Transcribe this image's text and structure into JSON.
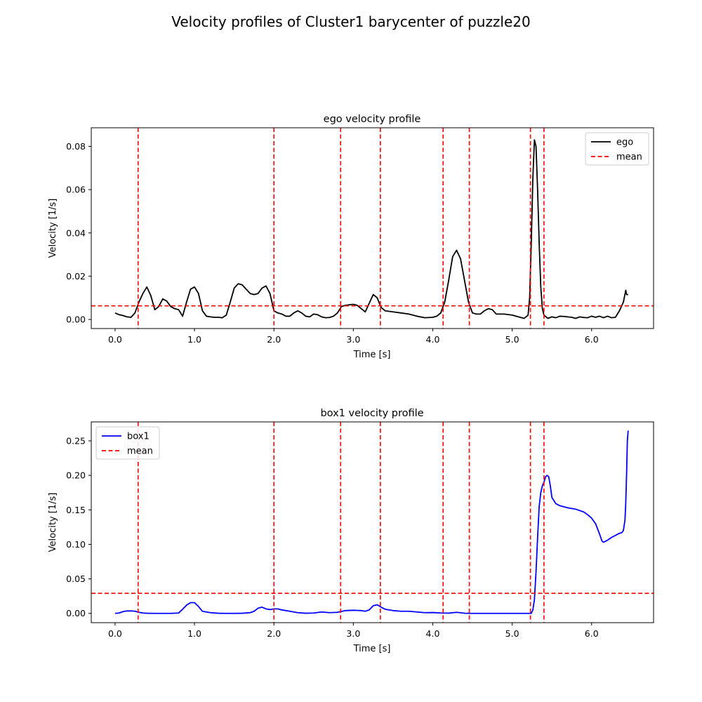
{
  "figure": {
    "title": "Velocity profiles of  Cluster1 barycenter of puzzle20"
  },
  "colors": {
    "ego": "#000000",
    "box1": "#0000ff",
    "mean": "#ff0000"
  },
  "chart_data": [
    {
      "type": "line",
      "title": "ego velocity profile",
      "xlabel": "Time [s]",
      "ylabel": "Velocity [1/s]",
      "xlim": [
        -0.3,
        6.78
      ],
      "ylim": [
        -0.0042,
        0.0886
      ],
      "xticks": [
        0.0,
        1.0,
        2.0,
        3.0,
        4.0,
        5.0,
        6.0
      ],
      "xtick_labels": [
        "0.0",
        "1.0",
        "2.0",
        "3.0",
        "4.0",
        "5.0",
        "6.0"
      ],
      "yticks": [
        0.0,
        0.02,
        0.04,
        0.06,
        0.08
      ],
      "ytick_labels": [
        "0.00",
        "0.02",
        "0.04",
        "0.06",
        "0.08"
      ],
      "legend": {
        "placement": "top-right",
        "entries": [
          "ego",
          "mean"
        ]
      },
      "series": [
        {
          "name": "ego",
          "color": "#000000",
          "style": "solid",
          "x": [
            0.0,
            0.05,
            0.1,
            0.15,
            0.2,
            0.25,
            0.3,
            0.35,
            0.4,
            0.45,
            0.5,
            0.55,
            0.6,
            0.65,
            0.7,
            0.75,
            0.8,
            0.85,
            0.9,
            0.95,
            1.0,
            1.05,
            1.1,
            1.15,
            1.2,
            1.25,
            1.3,
            1.35,
            1.4,
            1.45,
            1.5,
            1.55,
            1.6,
            1.65,
            1.7,
            1.75,
            1.8,
            1.85,
            1.9,
            1.95,
            2.0,
            2.05,
            2.1,
            2.15,
            2.2,
            2.25,
            2.3,
            2.35,
            2.4,
            2.45,
            2.5,
            2.55,
            2.6,
            2.65,
            2.7,
            2.75,
            2.8,
            2.85,
            2.9,
            2.95,
            3.0,
            3.05,
            3.1,
            3.15,
            3.2,
            3.25,
            3.3,
            3.35,
            3.4,
            3.5,
            3.6,
            3.7,
            3.8,
            3.9,
            4.0,
            4.05,
            4.1,
            4.15,
            4.2,
            4.25,
            4.3,
            4.35,
            4.4,
            4.45,
            4.5,
            4.55,
            4.6,
            4.65,
            4.7,
            4.75,
            4.8,
            4.9,
            5.0,
            5.1,
            5.15,
            5.2,
            5.22,
            5.24,
            5.26,
            5.28,
            5.3,
            5.32,
            5.34,
            5.36,
            5.38,
            5.4,
            5.45,
            5.5,
            5.55,
            5.6,
            5.65,
            5.7,
            5.75,
            5.8,
            5.85,
            5.9,
            5.95,
            6.0,
            6.05,
            6.1,
            6.15,
            6.2,
            6.25,
            6.3,
            6.35,
            6.4,
            6.43,
            6.44,
            6.46
          ],
          "y": [
            0.003,
            0.0022,
            0.0018,
            0.0012,
            0.001,
            0.003,
            0.008,
            0.012,
            0.015,
            0.011,
            0.0045,
            0.006,
            0.0095,
            0.0085,
            0.006,
            0.005,
            0.0045,
            0.0015,
            0.008,
            0.014,
            0.015,
            0.012,
            0.004,
            0.0015,
            0.0012,
            0.001,
            0.001,
            0.0008,
            0.002,
            0.008,
            0.0145,
            0.0165,
            0.016,
            0.014,
            0.012,
            0.0115,
            0.012,
            0.0145,
            0.0155,
            0.012,
            0.004,
            0.003,
            0.0025,
            0.0015,
            0.0015,
            0.003,
            0.004,
            0.003,
            0.0015,
            0.0012,
            0.0025,
            0.0022,
            0.0012,
            0.0008,
            0.0009,
            0.0015,
            0.003,
            0.006,
            0.0065,
            0.0068,
            0.007,
            0.0065,
            0.005,
            0.0035,
            0.0075,
            0.0115,
            0.01,
            0.0055,
            0.004,
            0.0035,
            0.003,
            0.0025,
            0.0015,
            0.0008,
            0.001,
            0.0015,
            0.003,
            0.008,
            0.018,
            0.029,
            0.032,
            0.028,
            0.018,
            0.008,
            0.003,
            0.0025,
            0.0025,
            0.004,
            0.005,
            0.0045,
            0.0025,
            0.0025,
            0.002,
            0.001,
            0.0005,
            0.002,
            0.01,
            0.035,
            0.065,
            0.083,
            0.08,
            0.06,
            0.035,
            0.015,
            0.005,
            0.002,
            0.0005,
            0.0012,
            0.0008,
            0.0015,
            0.0014,
            0.0012,
            0.001,
            0.0005,
            0.0012,
            0.0009,
            0.0008,
            0.0015,
            0.001,
            0.0015,
            0.0008,
            0.0015,
            0.0008,
            0.001,
            0.004,
            0.008,
            0.0135,
            0.0115,
            0.0115
          ]
        },
        {
          "name": "mean",
          "color": "#ff0000",
          "style": "dashed",
          "orientation": "horizontal",
          "value": 0.0063
        }
      ],
      "vlines": [
        0.29,
        2.0,
        2.84,
        3.34,
        4.13,
        4.46,
        5.23,
        5.4
      ]
    },
    {
      "type": "line",
      "title": "box1 velocity profile",
      "xlabel": "Time [s]",
      "ylabel": "Velocity [1/s]",
      "xlim": [
        -0.3,
        6.78
      ],
      "ylim": [
        -0.0135,
        0.2775
      ],
      "xticks": [
        0.0,
        1.0,
        2.0,
        3.0,
        4.0,
        5.0,
        6.0
      ],
      "xtick_labels": [
        "0.0",
        "1.0",
        "2.0",
        "3.0",
        "4.0",
        "5.0",
        "6.0"
      ],
      "yticks": [
        0.0,
        0.05,
        0.1,
        0.15,
        0.2,
        0.25
      ],
      "ytick_labels": [
        "0.00",
        "0.05",
        "0.10",
        "0.15",
        "0.20",
        "0.25"
      ],
      "legend": {
        "placement": "top-left",
        "entries": [
          "box1",
          "mean"
        ]
      },
      "series": [
        {
          "name": "box1",
          "color": "#0000ff",
          "style": "solid",
          "x": [
            0.0,
            0.05,
            0.1,
            0.15,
            0.2,
            0.25,
            0.3,
            0.35,
            0.4,
            0.5,
            0.6,
            0.7,
            0.8,
            0.85,
            0.9,
            0.95,
            1.0,
            1.05,
            1.1,
            1.2,
            1.3,
            1.4,
            1.5,
            1.6,
            1.7,
            1.75,
            1.8,
            1.85,
            1.9,
            1.95,
            2.0,
            2.05,
            2.1,
            2.2,
            2.3,
            2.4,
            2.5,
            2.6,
            2.7,
            2.8,
            2.9,
            3.0,
            3.1,
            3.15,
            3.2,
            3.25,
            3.3,
            3.35,
            3.4,
            3.5,
            3.6,
            3.7,
            3.8,
            3.9,
            4.0,
            4.1,
            4.2,
            4.3,
            4.4,
            4.5,
            4.6,
            4.7,
            4.8,
            4.9,
            5.0,
            5.1,
            5.2,
            5.22,
            5.24,
            5.26,
            5.28,
            5.3,
            5.32,
            5.34,
            5.36,
            5.38,
            5.4,
            5.42,
            5.44,
            5.46,
            5.48,
            5.5,
            5.55,
            5.6,
            5.7,
            5.8,
            5.9,
            5.95,
            6.0,
            6.05,
            6.1,
            6.13,
            6.15,
            6.2,
            6.25,
            6.3,
            6.35,
            6.38,
            6.4,
            6.42,
            6.43,
            6.44,
            6.45,
            6.46
          ],
          "y": [
            0.0,
            0.0005,
            0.0025,
            0.0035,
            0.0035,
            0.0032,
            0.0015,
            0.0005,
            0.0002,
            0.0,
            0.0,
            0.0,
            0.0005,
            0.006,
            0.012,
            0.0155,
            0.0155,
            0.01,
            0.003,
            0.001,
            0.0002,
            0.0,
            0.0,
            0.0002,
            0.001,
            0.003,
            0.0075,
            0.009,
            0.0065,
            0.0055,
            0.0065,
            0.0065,
            0.005,
            0.003,
            0.001,
            0.0002,
            0.0005,
            0.002,
            0.001,
            0.0015,
            0.004,
            0.0045,
            0.004,
            0.003,
            0.005,
            0.011,
            0.0125,
            0.009,
            0.006,
            0.004,
            0.003,
            0.003,
            0.002,
            0.001,
            0.0012,
            0.0005,
            0.0003,
            0.0015,
            0.0002,
            0.0,
            0.0,
            0.0,
            0.0,
            0.0,
            0.0,
            0.0,
            0.0,
            0.0,
            0.0,
            0.005,
            0.02,
            0.06,
            0.11,
            0.155,
            0.175,
            0.185,
            0.19,
            0.198,
            0.2,
            0.198,
            0.185,
            0.168,
            0.159,
            0.156,
            0.153,
            0.151,
            0.147,
            0.143,
            0.138,
            0.13,
            0.115,
            0.105,
            0.103,
            0.106,
            0.11,
            0.113,
            0.116,
            0.117,
            0.12,
            0.135,
            0.16,
            0.2,
            0.25,
            0.265
          ]
        },
        {
          "name": "mean",
          "color": "#ff0000",
          "style": "dashed",
          "orientation": "horizontal",
          "value": 0.029
        }
      ],
      "vlines": [
        0.29,
        2.0,
        2.84,
        3.34,
        4.13,
        4.46,
        5.23,
        5.4
      ]
    }
  ]
}
